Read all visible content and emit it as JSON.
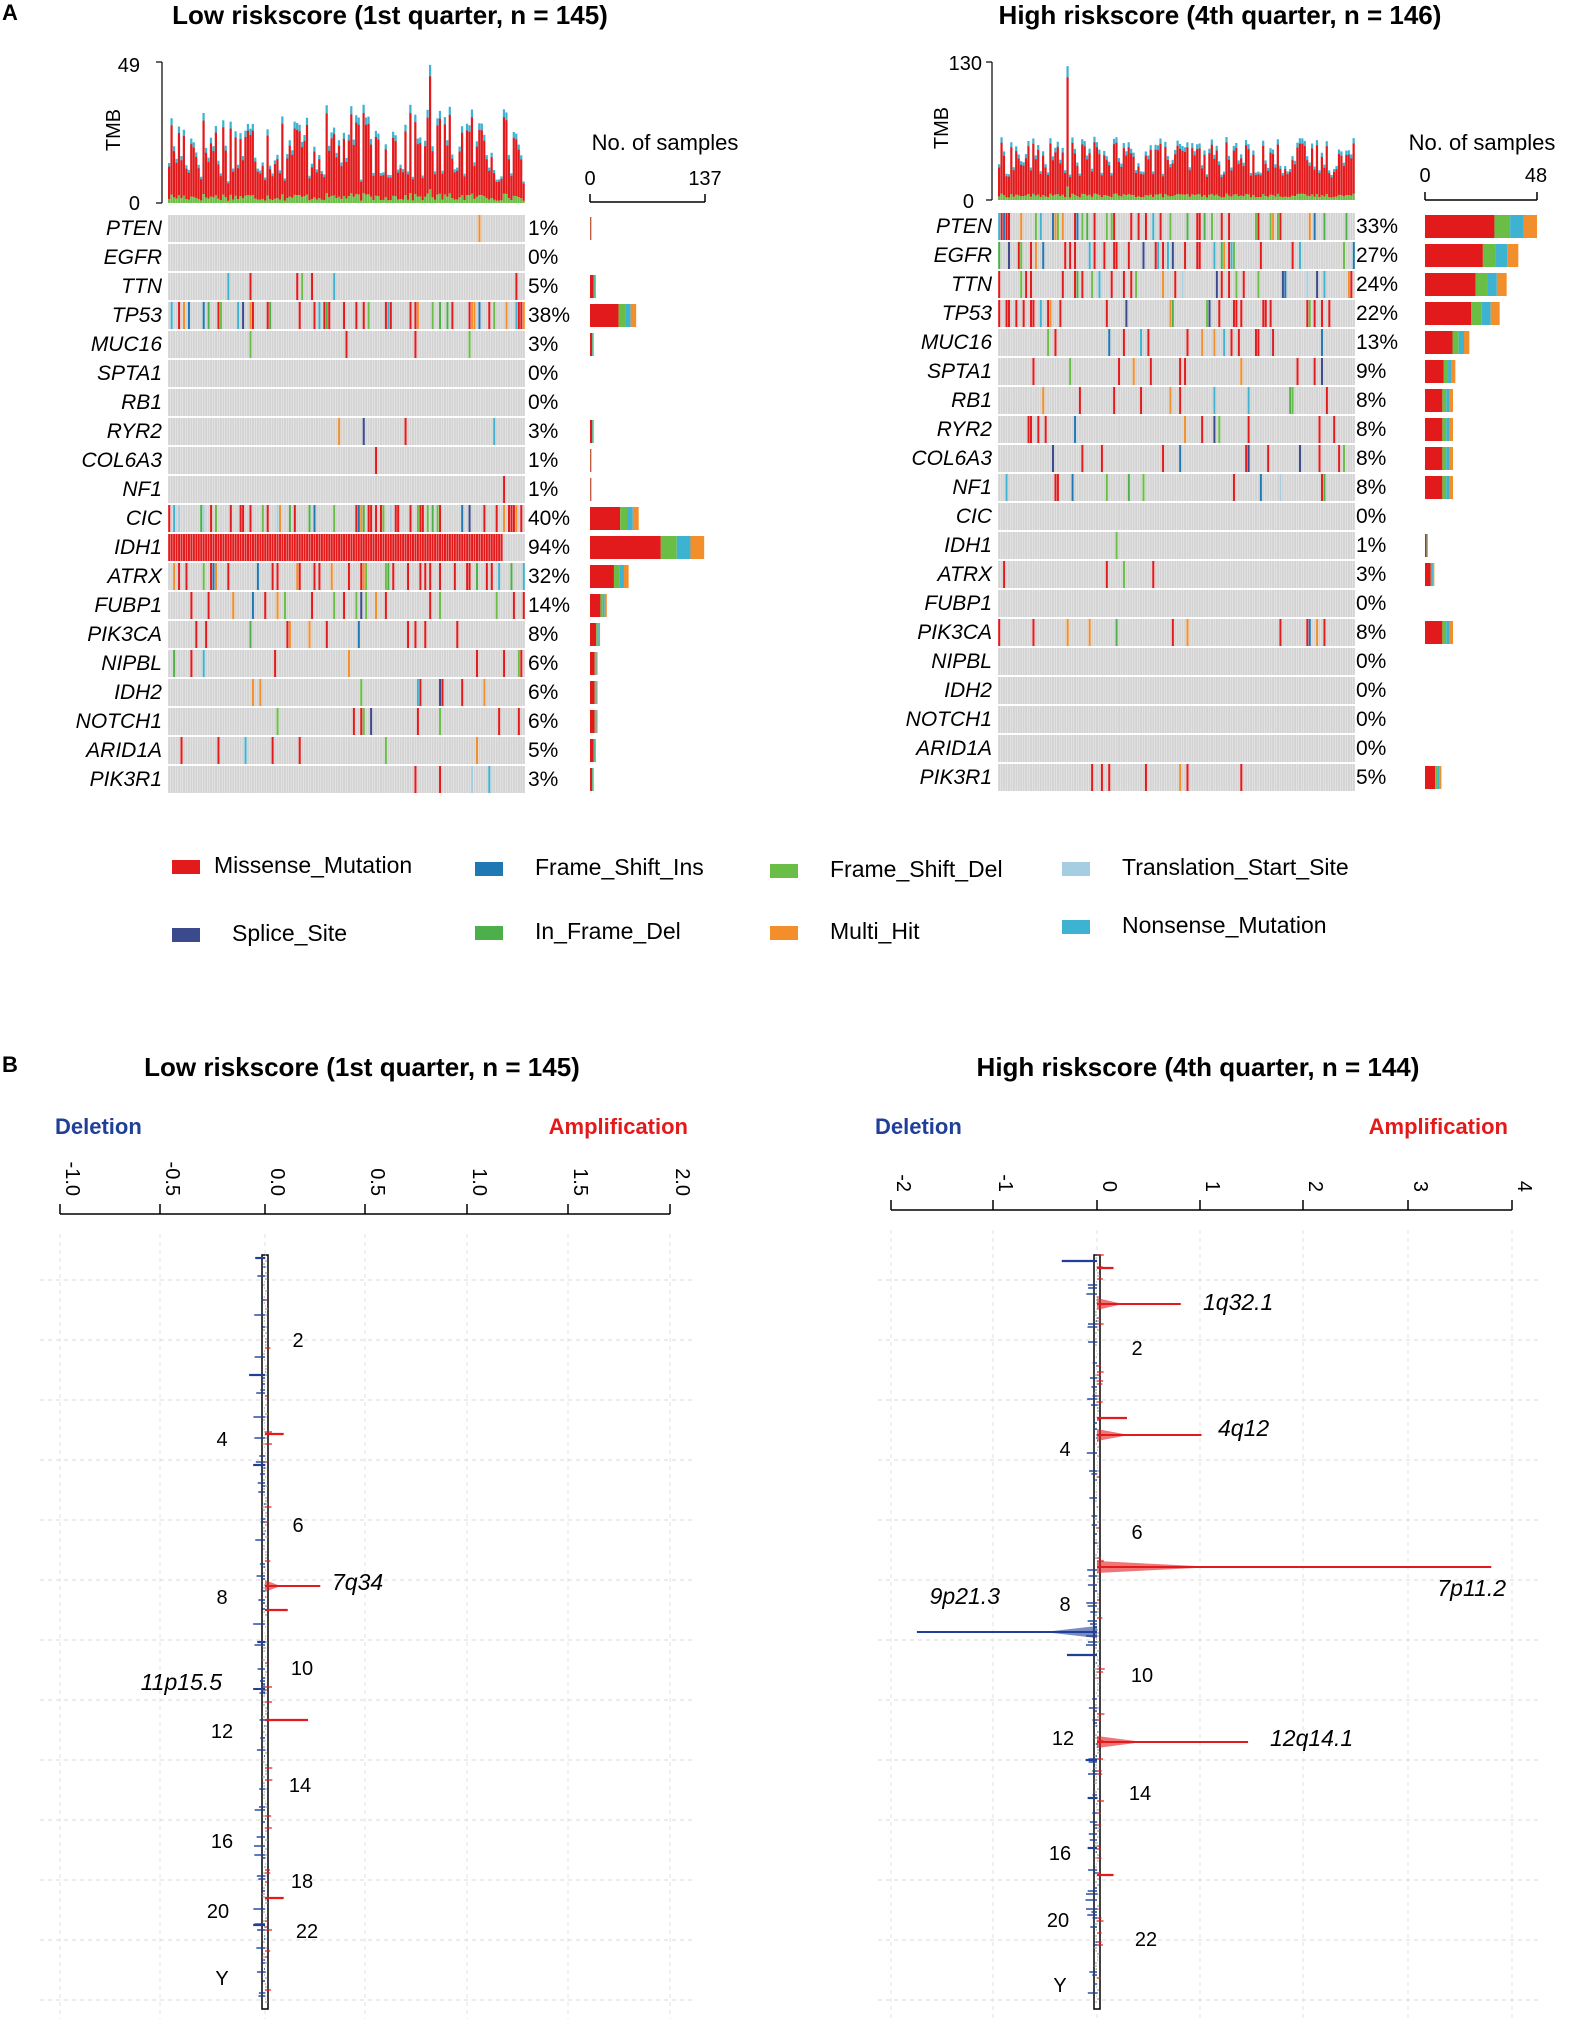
{
  "panel_labels": {
    "a": "A",
    "b": "B"
  },
  "colors": {
    "Missense_Mutation": "#e31a1c",
    "Frame_Shift_Ins": "#1f78b4",
    "Frame_Shift_Del": "#6abd45",
    "Translation_Start_Site": "#a6cee3",
    "Splice_Site": "#3b4a8c",
    "In_Frame_Del": "#4daf4a",
    "Multi_Hit": "#f28e2b",
    "Nonsense_Mutation": "#3eb3d1",
    "wildtype": "#d3d3d3",
    "deletion": "#1f3f99",
    "amplification": "#e31a1c",
    "cnv_gray": "#a0a0a0"
  },
  "legend": {
    "items": [
      "Missense_Mutation",
      "Frame_Shift_Ins",
      "Frame_Shift_Del",
      "Translation_Start_Site",
      "Splice_Site",
      "In_Frame_Del",
      "Multi_Hit",
      "Nonsense_Mutation"
    ]
  },
  "chart_data": [
    {
      "type": "oncoplot",
      "title": "Low riskscore (1st quarter, n = 145)",
      "tmb_label": "TMB",
      "tmb_max": "49",
      "tmb_min": "0",
      "bar_axis_title": "No. of samples",
      "bar_axis_min": "0",
      "bar_axis_max": "137",
      "n_samples": 145,
      "genes": [
        "PTEN",
        "EGFR",
        "TTN",
        "TP53",
        "MUC16",
        "SPTA1",
        "RB1",
        "RYR2",
        "COL6A3",
        "NF1",
        "CIC",
        "IDH1",
        "ATRX",
        "FUBP1",
        "PIK3CA",
        "NIPBL",
        "IDH2",
        "NOTCH1",
        "ARID1A",
        "PIK3R1"
      ],
      "percents": [
        "1%",
        "0%",
        "5%",
        "38%",
        "3%",
        "0%",
        "0%",
        "3%",
        "1%",
        "1%",
        "40%",
        "94%",
        "32%",
        "14%",
        "8%",
        "6%",
        "6%",
        "6%",
        "5%",
        "3%"
      ],
      "bar_counts": [
        1,
        0,
        7,
        55,
        4,
        0,
        0,
        4,
        1,
        1,
        58,
        136,
        46,
        20,
        12,
        9,
        9,
        9,
        7,
        4
      ]
    },
    {
      "type": "oncoplot",
      "title": "High riskscore (4th quarter, n = 146)",
      "tmb_label": "TMB",
      "tmb_max": "130",
      "tmb_min": "0",
      "bar_axis_title": "No. of samples",
      "bar_axis_min": "0",
      "bar_axis_max": "48",
      "n_samples": 146,
      "genes": [
        "PTEN",
        "EGFR",
        "TTN",
        "TP53",
        "MUC16",
        "SPTA1",
        "RB1",
        "RYR2",
        "COL6A3",
        "NF1",
        "CIC",
        "IDH1",
        "ATRX",
        "FUBP1",
        "PIK3CA",
        "NIPBL",
        "IDH2",
        "NOTCH1",
        "ARID1A",
        "PIK3R1"
      ],
      "percents": [
        "33%",
        "27%",
        "24%",
        "22%",
        "13%",
        "9%",
        "8%",
        "8%",
        "8%",
        "8%",
        "0%",
        "1%",
        "3%",
        "0%",
        "8%",
        "0%",
        "0%",
        "0%",
        "0%",
        "5%"
      ],
      "bar_counts": [
        48,
        40,
        35,
        32,
        19,
        13,
        12,
        12,
        12,
        12,
        0,
        1,
        4,
        0,
        12,
        0,
        0,
        0,
        0,
        7
      ]
    },
    {
      "type": "cnv_profile",
      "title": "Low riskscore (1st quarter, n = 145)",
      "deletion_label": "Deletion",
      "amplification_label": "Amplification",
      "axis_ticks": [
        "-1.0",
        "-0.5",
        "0.0",
        "0.5",
        "1.0",
        "1.5",
        "2.0"
      ],
      "axis_range": [
        -1.0,
        2.0
      ],
      "chromosome_labels": [
        "2",
        "4",
        "6",
        "8",
        "10",
        "12",
        "14",
        "16",
        "18",
        "20",
        "22",
        "Y"
      ],
      "peaks": [
        {
          "label": "7q34",
          "value": 0.28,
          "side": "amp"
        },
        {
          "label": "11p15.5",
          "value": -0.05,
          "side": "del"
        }
      ]
    },
    {
      "type": "cnv_profile",
      "title": "High riskscore (4th quarter, n = 144)",
      "deletion_label": "Deletion",
      "amplification_label": "Amplification",
      "axis_ticks": [
        "-2",
        "-1",
        "0",
        "1",
        "2",
        "3",
        "4"
      ],
      "axis_range": [
        -2,
        4
      ],
      "chromosome_labels": [
        "2",
        "4",
        "6",
        "8",
        "10",
        "12",
        "14",
        "16",
        "20",
        "22",
        "Y"
      ],
      "peaks": [
        {
          "label": "1q32.1",
          "value": 0.8,
          "side": "amp"
        },
        {
          "label": "4q12",
          "value": 1.0,
          "side": "amp"
        },
        {
          "label": "7p11.2",
          "value": 3.8,
          "side": "amp"
        },
        {
          "label": "9p21.3",
          "value": -1.75,
          "side": "del"
        },
        {
          "label": "12q14.1",
          "value": 1.45,
          "side": "amp"
        }
      ]
    }
  ]
}
